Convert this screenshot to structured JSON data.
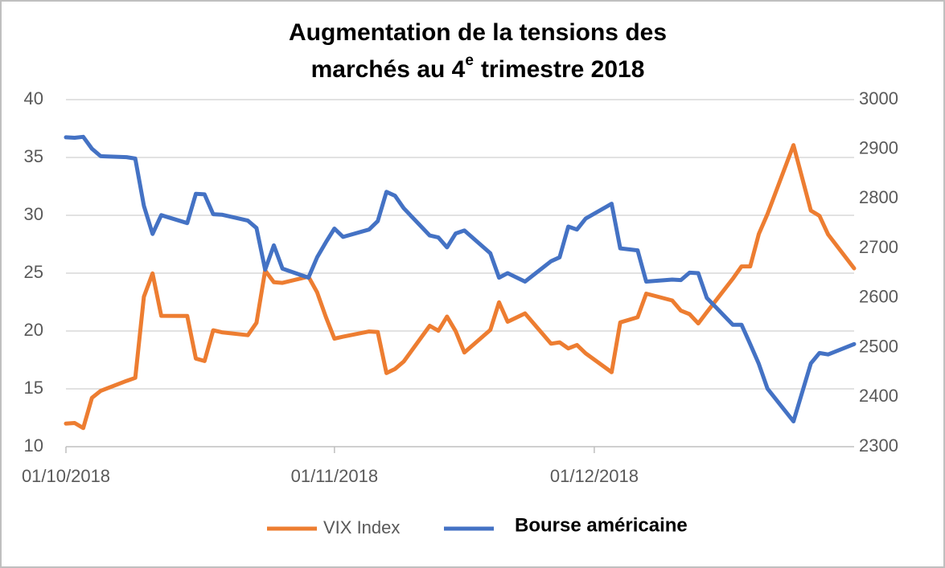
{
  "chart_data": {
    "type": "line",
    "title": [
      "Augmentation de la tensions des",
      "marchés au 4",
      "e",
      "trimestre 2018"
    ],
    "x": [
      "2018-10-01",
      "2018-10-02",
      "2018-10-03",
      "2018-10-04",
      "2018-10-05",
      "2018-10-08",
      "2018-10-09",
      "2018-10-10",
      "2018-10-11",
      "2018-10-12",
      "2018-10-15",
      "2018-10-16",
      "2018-10-17",
      "2018-10-18",
      "2018-10-19",
      "2018-10-22",
      "2018-10-23",
      "2018-10-24",
      "2018-10-25",
      "2018-10-26",
      "2018-10-29",
      "2018-10-30",
      "2018-10-31",
      "2018-11-01",
      "2018-11-02",
      "2018-11-05",
      "2018-11-06",
      "2018-11-07",
      "2018-11-08",
      "2018-11-09",
      "2018-11-12",
      "2018-11-13",
      "2018-11-14",
      "2018-11-15",
      "2018-11-16",
      "2018-11-19",
      "2018-11-20",
      "2018-11-21",
      "2018-11-23",
      "2018-11-26",
      "2018-11-27",
      "2018-11-28",
      "2018-11-29",
      "2018-11-30",
      "2018-12-03",
      "2018-12-04",
      "2018-12-06",
      "2018-12-07",
      "2018-12-10",
      "2018-12-11",
      "2018-12-12",
      "2018-12-13",
      "2018-12-14",
      "2018-12-17",
      "2018-12-18",
      "2018-12-19",
      "2018-12-20",
      "2018-12-21",
      "2018-12-24",
      "2018-12-26",
      "2018-12-27",
      "2018-12-28",
      "2018-12-31"
    ],
    "series": [
      {
        "name": "VIX Index",
        "color": "#ed7d31",
        "values": [
          12.0,
          12.05,
          11.61,
          14.22,
          14.82,
          15.69,
          15.95,
          22.96,
          24.98,
          21.31,
          21.3,
          17.62,
          17.4,
          20.06,
          19.89,
          19.64,
          20.71,
          25.23,
          24.22,
          24.16,
          24.7,
          23.35,
          21.23,
          19.34,
          19.51,
          19.96,
          19.91,
          16.36,
          16.72,
          17.36,
          20.45,
          20.02,
          21.25,
          19.98,
          18.14,
          20.1,
          22.48,
          20.8,
          21.52,
          18.9,
          19.02,
          18.49,
          18.79,
          18.07,
          16.44,
          20.74,
          21.19,
          23.23,
          22.64,
          21.76,
          21.46,
          20.65,
          21.63,
          24.52,
          25.58,
          25.58,
          28.38,
          30.11,
          36.07,
          30.41,
          29.96,
          28.34,
          25.42
        ]
      },
      {
        "name": "Bourse américaine",
        "color": "#4472c4",
        "axis": "y2",
        "values": [
          2924,
          2923,
          2925,
          2901,
          2886,
          2884,
          2881,
          2786,
          2729,
          2767,
          2751,
          2810,
          2809,
          2769,
          2768,
          2756,
          2741,
          2657,
          2706,
          2659,
          2641,
          2682,
          2712,
          2740,
          2723,
          2738,
          2755,
          2814,
          2806,
          2781,
          2726,
          2722,
          2702,
          2730,
          2736,
          2690,
          2641,
          2650,
          2633,
          2674,
          2682,
          2744,
          2738,
          2760,
          2790,
          2700,
          2696,
          2633,
          2637,
          2636,
          2651,
          2650,
          2600,
          2546,
          2546,
          2507,
          2467,
          2417,
          2351,
          2468,
          2489,
          2486,
          2507
        ]
      }
    ],
    "xlim": [
      "2018-10-01",
      "2018-12-31"
    ],
    "xticks": [
      {
        "value": "2018-10-01",
        "label": "01/10/2018"
      },
      {
        "value": "2018-11-01",
        "label": "01/11/2018"
      },
      {
        "value": "2018-12-01",
        "label": "01/12/2018"
      }
    ],
    "ylim": [
      10,
      40
    ],
    "yticks": [
      10,
      15,
      20,
      25,
      30,
      35,
      40
    ],
    "y2lim": [
      2300,
      3000
    ],
    "y2ticks": [
      2300,
      2400,
      2500,
      2600,
      2700,
      2800,
      2900,
      3000
    ],
    "grid": true
  }
}
